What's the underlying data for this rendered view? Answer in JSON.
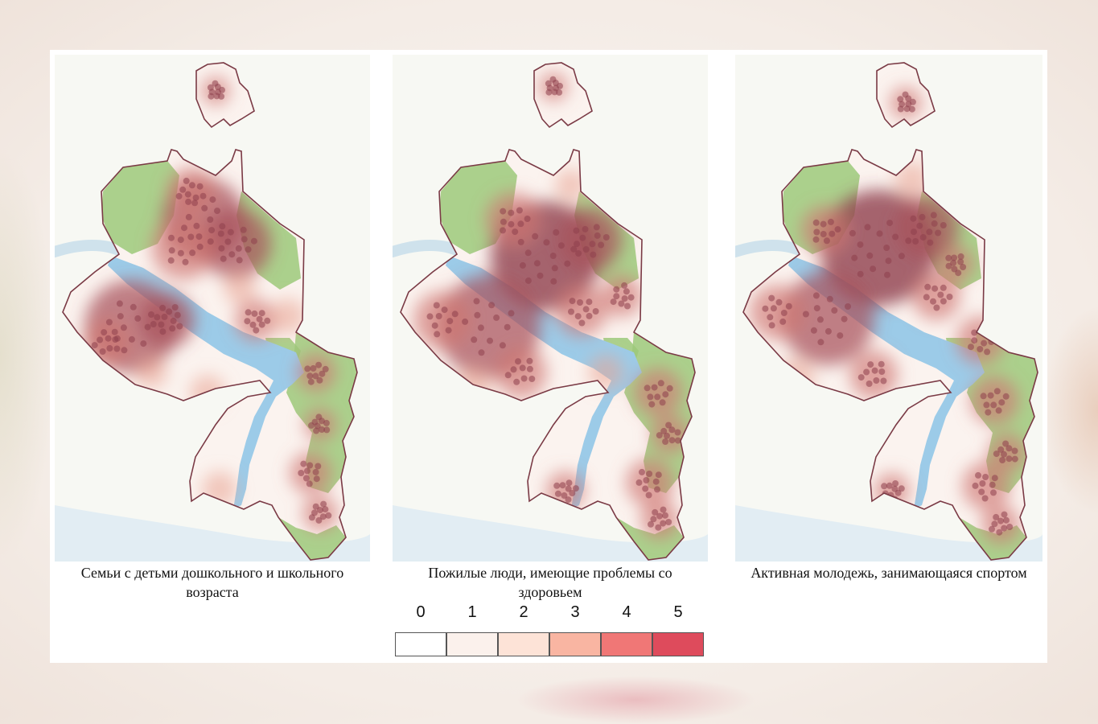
{
  "panels": [
    {
      "caption": "Семьи с детьми дошкольного и школьного возраста"
    },
    {
      "caption": "Пожилые люди, имеющие проблемы со здоровьем"
    },
    {
      "caption": "Активная молодежь, занимающаяся спортом"
    }
  ],
  "legend": {
    "classes": [
      {
        "label": "0",
        "color": "#ffffff"
      },
      {
        "label": "1",
        "color": "#fbf1ec"
      },
      {
        "label": "2",
        "color": "#fde3d7"
      },
      {
        "label": "3",
        "color": "#f9b5a2"
      },
      {
        "label": "4",
        "color": "#f07776"
      },
      {
        "label": "5",
        "color": "#de4b5c"
      }
    ]
  },
  "colors": {
    "boundary": "#7a3a45",
    "river": "#9ccbe8",
    "park": "#9cc97a",
    "heat_low": "#f1c1b0",
    "heat_high": "#8e3f4c"
  }
}
